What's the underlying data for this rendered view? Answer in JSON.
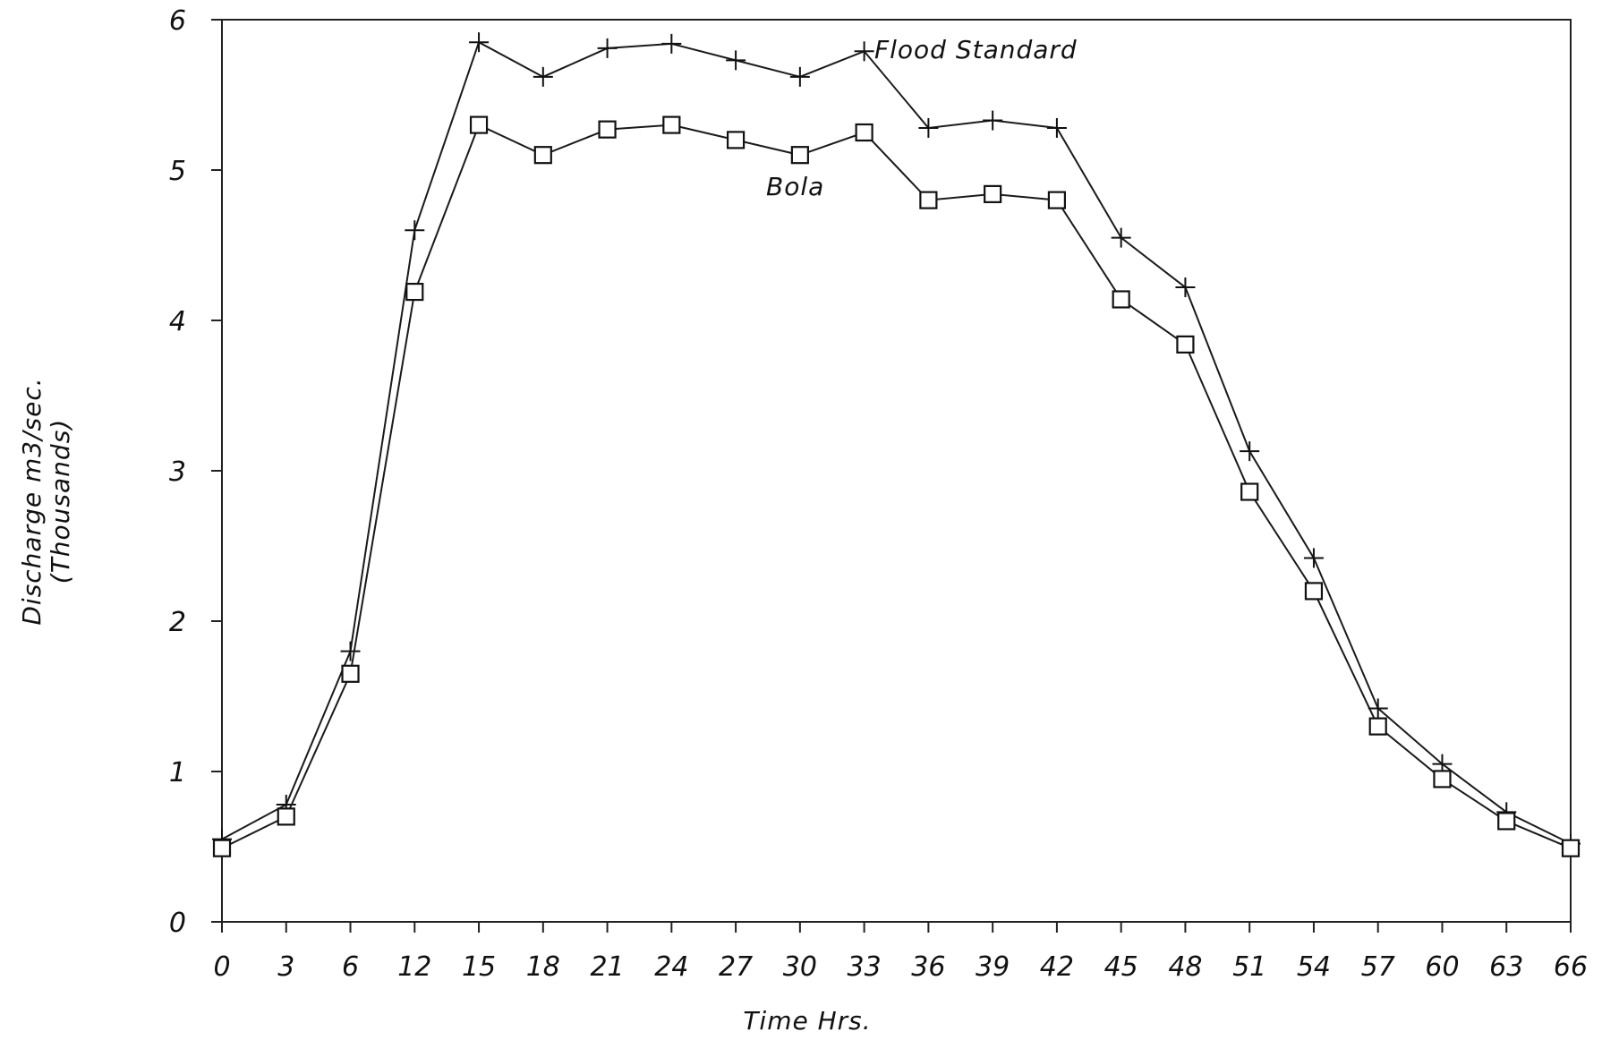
{
  "chart_data": {
    "type": "line",
    "xlabel": "Time Hrs.",
    "ylabel": "Discharge m3/sec.",
    "ylabel_unit": "(Thousands)",
    "categories": [
      "0",
      "3",
      "6",
      "12",
      "15",
      "18",
      "21",
      "24",
      "27",
      "30",
      "33",
      "36",
      "39",
      "42",
      "45",
      "48",
      "51",
      "54",
      "57",
      "60",
      "63",
      "66"
    ],
    "y_ticks": [
      "0",
      "1",
      "2",
      "3",
      "4",
      "5",
      "6"
    ],
    "ylim": [
      0,
      6
    ],
    "grid": false,
    "series": [
      {
        "name": "Flood Standard",
        "marker": "plus",
        "values": [
          0.55,
          0.78,
          1.8,
          4.6,
          5.85,
          5.62,
          5.81,
          5.84,
          5.73,
          5.62,
          5.79,
          5.28,
          5.33,
          5.28,
          4.55,
          4.22,
          3.13,
          2.42,
          1.42,
          1.05,
          0.73,
          0.52
        ]
      },
      {
        "name": "Bola",
        "marker": "square",
        "values": [
          0.49,
          0.7,
          1.65,
          4.19,
          5.3,
          5.1,
          5.27,
          5.3,
          5.2,
          5.1,
          5.25,
          4.8,
          4.84,
          4.8,
          4.14,
          3.84,
          2.86,
          2.2,
          1.3,
          0.95,
          0.67,
          0.49
        ]
      }
    ]
  }
}
